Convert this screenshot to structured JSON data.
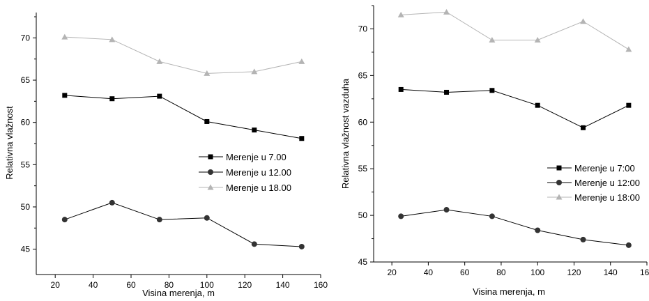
{
  "chart_data": [
    {
      "type": "line",
      "title": "",
      "xlabel": "Visina merenja, m",
      "ylabel": "Relativna vlažnost",
      "xlim": [
        10,
        160
      ],
      "ylim": [
        42,
        73
      ],
      "xticks": [
        20,
        40,
        60,
        80,
        100,
        120,
        140,
        160
      ],
      "yticks": [
        45,
        50,
        55,
        60,
        65,
        70
      ],
      "grid": false,
      "legend_position": "right",
      "x": [
        25,
        50,
        75,
        100,
        125,
        150
      ],
      "series": [
        {
          "name": "Merenje u 7.00",
          "marker": "square",
          "color": "#000000",
          "line_color": "#000000",
          "values": [
            63.2,
            62.8,
            63.1,
            60.1,
            59.1,
            58.1
          ]
        },
        {
          "name": "Merenje u 12.00",
          "marker": "circle",
          "color": "#333333",
          "line_color": "#000000",
          "values": [
            48.5,
            50.5,
            48.5,
            48.7,
            45.6,
            45.3
          ]
        },
        {
          "name": "Merenje u 18.00",
          "marker": "triangle",
          "color": "#b4b4b4",
          "line_color": "#b4b4b4",
          "values": [
            70.1,
            69.8,
            67.2,
            65.8,
            66.0,
            67.2
          ]
        }
      ]
    },
    {
      "type": "line",
      "title": "",
      "xlabel": "Visina merenja, m",
      "ylabel": "Relativna vlažnost vazduha",
      "xlim": [
        10,
        160
      ],
      "ylim": [
        45,
        72.5
      ],
      "xticks": [
        20,
        40,
        60,
        80,
        100,
        120,
        140,
        160
      ],
      "yticks": [
        45,
        50,
        55,
        60,
        65,
        70
      ],
      "grid": false,
      "legend_position": "bottom-right",
      "x": [
        25,
        50,
        75,
        100,
        125,
        150
      ],
      "series": [
        {
          "name": "Merenje u 7:00",
          "marker": "square",
          "color": "#000000",
          "line_color": "#000000",
          "values": [
            63.5,
            63.2,
            63.4,
            61.8,
            59.4,
            61.8
          ]
        },
        {
          "name": "Merenje u 12:00",
          "marker": "circle",
          "color": "#333333",
          "line_color": "#000000",
          "values": [
            49.9,
            50.6,
            49.9,
            48.4,
            47.4,
            46.8
          ]
        },
        {
          "name": "Merenje u 18:00",
          "marker": "triangle",
          "color": "#b4b4b4",
          "line_color": "#b4b4b4",
          "values": [
            71.5,
            71.8,
            68.8,
            68.8,
            70.8,
            67.8
          ]
        }
      ]
    }
  ]
}
